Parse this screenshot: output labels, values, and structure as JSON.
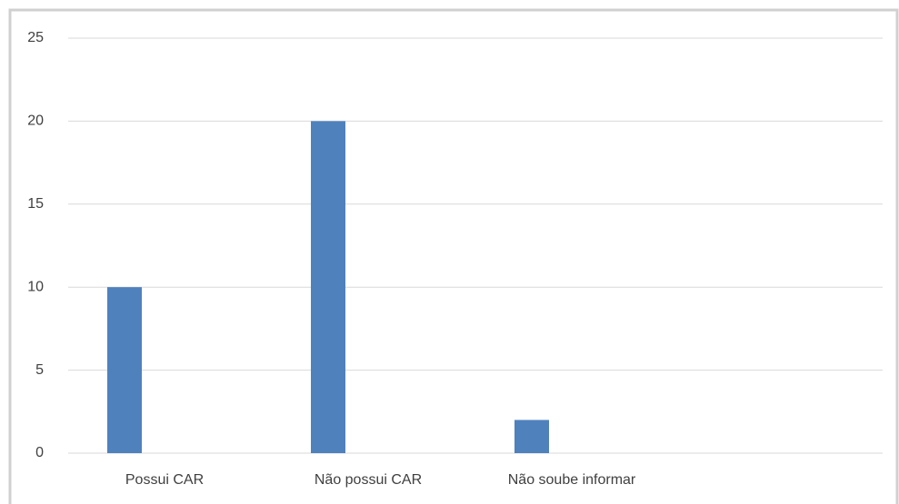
{
  "chart_data": {
    "type": "bar",
    "categories": [
      "Possui CAR",
      "Não possui CAR",
      "Não soube informar",
      null
    ],
    "values": [
      10,
      20,
      2,
      null
    ],
    "color": "#4f81bd",
    "ylim": [
      0,
      25
    ],
    "yticks": [
      0,
      5,
      10,
      15,
      20,
      25
    ],
    "grid": true
  }
}
